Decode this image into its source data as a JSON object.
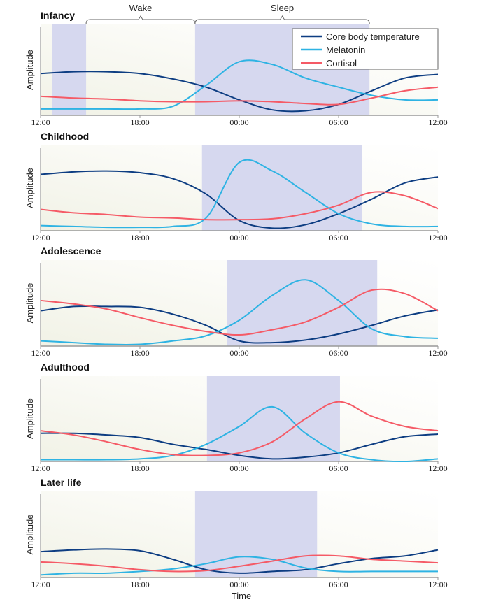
{
  "chart_data": {
    "type": "line",
    "xlabel": "Time",
    "ylabel": "Amplitude",
    "x_ticks": [
      "12:00",
      "18:00",
      "00:00",
      "06:00",
      "12:00"
    ],
    "x": [
      "12:00",
      "14:00",
      "16:00",
      "18:00",
      "20:00",
      "22:00",
      "00:00",
      "02:00",
      "04:00",
      "06:00",
      "08:00",
      "10:00",
      "12:00"
    ],
    "ylim": [
      0,
      100
    ],
    "legend": {
      "placement": "top-right",
      "entries": [
        "Core body temperature",
        "Melatonin",
        "Cortisol"
      ]
    },
    "colors": {
      "Core body temperature": "#0d3d82",
      "Melatonin": "#2eb3e3",
      "Cortisol": "#f55a66",
      "sleep_shade": "#d6d8ef"
    },
    "brackets": [
      {
        "label": "Wake",
        "start": "14:45",
        "end": "21:20"
      },
      {
        "label": "Sleep",
        "start": "21:20",
        "end": "07:52"
      }
    ],
    "panels": [
      {
        "title": "Infancy",
        "sleep": [
          {
            "start": "12:43",
            "end": "14:45"
          },
          {
            "start": "21:20",
            "end": "07:52"
          }
        ],
        "series": [
          {
            "name": "Core body temperature",
            "values": [
              46,
              48,
              48,
              46,
              40,
              31,
              17,
              6,
              5,
              12,
              27,
              41,
              45
            ]
          },
          {
            "name": "Melatonin",
            "values": [
              7,
              7,
              7,
              7,
              10,
              33,
              59,
              56,
              41,
              31,
              22,
              17,
              17
            ]
          },
          {
            "name": "Cortisol",
            "values": [
              21,
              19,
              18,
              16,
              15,
              15,
              16,
              15,
              13,
              12,
              19,
              27,
              31
            ]
          }
        ]
      },
      {
        "title": "Childhood",
        "sleep": [
          {
            "start": "21:45",
            "end": "07:25"
          }
        ],
        "series": [
          {
            "name": "Core body temperature",
            "values": [
              66,
              69,
              70,
              68,
              61,
              43,
              12,
              3,
              7,
              20,
              37,
              56,
              63
            ]
          },
          {
            "name": "Melatonin",
            "values": [
              6,
              5,
              4,
              4,
              5,
              15,
              80,
              70,
              45,
              20,
              8,
              5,
              5
            ]
          },
          {
            "name": "Cortisol",
            "values": [
              25,
              21,
              19,
              16,
              15,
              13,
              13,
              14,
              20,
              30,
              45,
              41,
              26
            ]
          }
        ]
      },
      {
        "title": "Adolescence",
        "sleep": [
          {
            "start": "23:15",
            "end": "08:20"
          }
        ],
        "series": [
          {
            "name": "Core body temperature",
            "values": [
              41,
              46,
              46,
              45,
              37,
              24,
              6,
              4,
              7,
              14,
              24,
              35,
              42
            ]
          },
          {
            "name": "Melatonin",
            "values": [
              6,
              4,
              2,
              2,
              6,
              12,
              30,
              59,
              77,
              53,
              20,
              11,
              9
            ]
          },
          {
            "name": "Cortisol",
            "values": [
              53,
              49,
              43,
              33,
              24,
              17,
              13,
              19,
              28,
              45,
              65,
              61,
              41
            ]
          }
        ]
      },
      {
        "title": "Adulthood",
        "sleep": [
          {
            "start": "22:03",
            "end": "06:05"
          }
        ],
        "series": [
          {
            "name": "Core body temperature",
            "values": [
              33,
              33,
              31,
              28,
              20,
              14,
              7,
              3,
              5,
              10,
              20,
              29,
              32
            ]
          },
          {
            "name": "Melatonin",
            "values": [
              2,
              2,
              2,
              3,
              7,
              20,
              41,
              64,
              33,
              10,
              2,
              0,
              3
            ]
          },
          {
            "name": "Cortisol",
            "values": [
              36,
              31,
              23,
              14,
              8,
              7,
              10,
              23,
              50,
              70,
              53,
              41,
              36
            ]
          }
        ]
      },
      {
        "title": "Later life",
        "sleep": [
          {
            "start": "21:20",
            "end": "04:42"
          }
        ],
        "series": [
          {
            "name": "Core body temperature",
            "values": [
              30,
              32,
              33,
              31,
              21,
              9,
              5,
              7,
              9,
              16,
              22,
              25,
              32
            ]
          },
          {
            "name": "Melatonin",
            "values": [
              3,
              5,
              5,
              7,
              10,
              16,
              24,
              21,
              11,
              7,
              7,
              7,
              7
            ]
          },
          {
            "name": "Cortisol",
            "values": [
              18,
              16,
              13,
              9,
              7,
              8,
              13,
              19,
              25,
              25,
              21,
              19,
              17
            ]
          }
        ]
      }
    ]
  }
}
